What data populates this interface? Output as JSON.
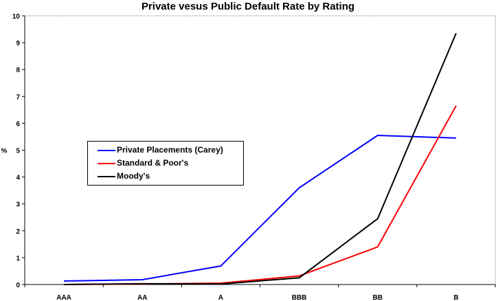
{
  "chart_data": {
    "type": "line",
    "title": "Private vesus Public Default Rate by Rating",
    "xlabel": "",
    "ylabel": "%",
    "categories": [
      "AAA",
      "AA",
      "A",
      "BBB",
      "BB",
      "B"
    ],
    "ylim": [
      0,
      10
    ],
    "yticks": [
      0,
      1,
      2,
      3,
      4,
      5,
      6,
      7,
      8,
      9,
      10
    ],
    "grid": false,
    "legend_position": "center-left",
    "series": [
      {
        "name": "Private Placements (Carey)",
        "color": "#0000ff",
        "values": [
          0.13,
          0.18,
          0.69,
          3.6,
          5.55,
          5.45
        ]
      },
      {
        "name": "Standard & Poor's",
        "color": "#ff0000",
        "values": [
          0.0,
          0.02,
          0.05,
          0.32,
          1.4,
          6.65
        ]
      },
      {
        "name": "Moody's",
        "color": "#000000",
        "values": [
          0.0,
          0.03,
          0.02,
          0.25,
          2.45,
          9.35
        ]
      }
    ]
  }
}
